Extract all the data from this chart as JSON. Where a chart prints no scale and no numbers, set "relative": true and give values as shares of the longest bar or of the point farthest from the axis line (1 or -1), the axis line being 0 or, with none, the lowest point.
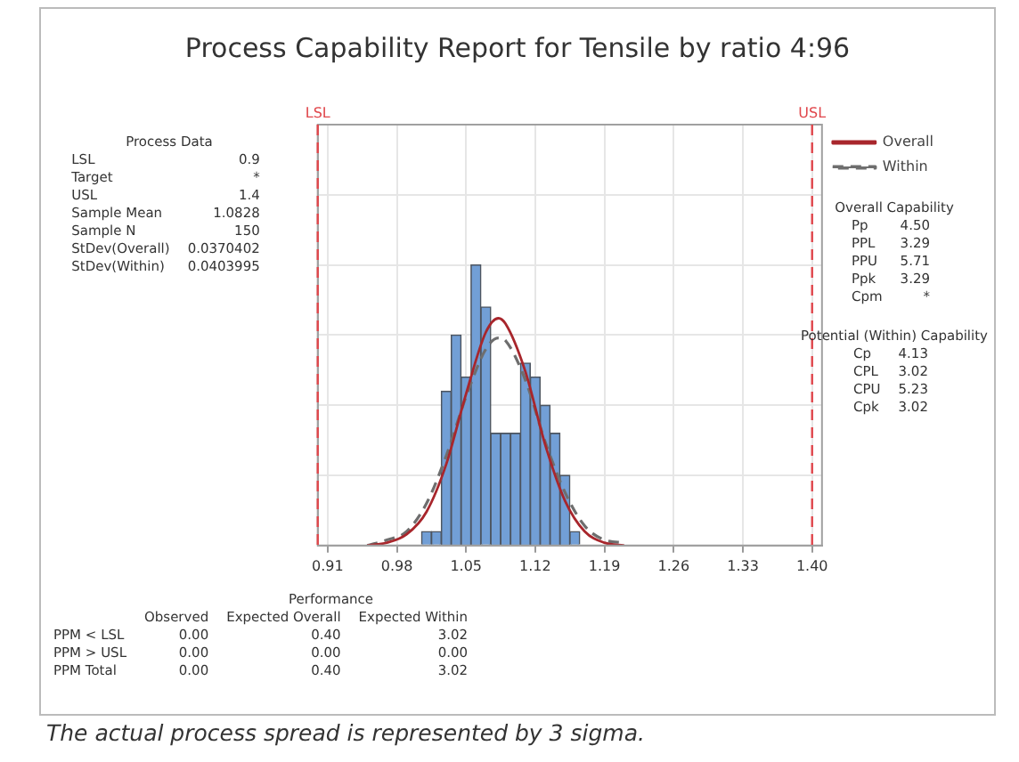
{
  "chart_data": {
    "type": "histogram",
    "title": "Process Capability Report for Tensile by ratio 4:96",
    "relative": true,
    "bins": [
      1.005,
      1.015,
      1.025,
      1.035,
      1.045,
      1.055,
      1.065,
      1.075,
      1.085,
      1.095,
      1.105,
      1.115,
      1.125,
      1.135,
      1.145,
      1.155,
      1.165
    ],
    "values": [
      0.05,
      0.05,
      0.55,
      0.75,
      0.6,
      1,
      0.85,
      0.4,
      0.4,
      0.4,
      0.65,
      0.6,
      0.5,
      0.4,
      0.25,
      0.05
    ],
    "color": "#729fd6",
    "series": [
      {
        "type": "line",
        "name": "Overall",
        "color": "#a8262c",
        "line_style": "solid",
        "x": [
          0.95,
          0.97,
          0.99,
          1.01,
          1.03,
          1.05,
          1.07,
          1.0828,
          1.09,
          1.11,
          1.13,
          1.15,
          1.17,
          1.19,
          1.21
        ],
        "values": [
          0,
          0.01,
          0.04,
          0.12,
          0.29,
          0.54,
          0.76,
          0.81,
          0.79,
          0.62,
          0.36,
          0.16,
          0.05,
          0.01,
          0
        ]
      },
      {
        "type": "line",
        "name": "Within",
        "color": "#6e6e6e",
        "line_style": "dashed",
        "x": [
          0.95,
          0.97,
          0.99,
          1.01,
          1.03,
          1.05,
          1.07,
          1.0828,
          1.09,
          1.11,
          1.13,
          1.15,
          1.17,
          1.19,
          1.21
        ],
        "values": [
          0,
          0.02,
          0.05,
          0.15,
          0.32,
          0.53,
          0.7,
          0.74,
          0.73,
          0.59,
          0.37,
          0.19,
          0.07,
          0.02,
          0.01
        ]
      }
    ],
    "xlim": [
      0.9,
      1.41
    ],
    "xticks": [
      {
        "value": 0.91,
        "label": "0.91"
      },
      {
        "value": 0.98,
        "label": "0.98"
      },
      {
        "value": 1.05,
        "label": "1.05"
      },
      {
        "value": 1.12,
        "label": "1.12"
      },
      {
        "value": 1.19,
        "label": "1.19"
      },
      {
        "value": 1.26,
        "label": "1.26"
      },
      {
        "value": 1.33,
        "label": "1.33"
      },
      {
        "value": 1.4,
        "label": "1.40"
      }
    ],
    "ref_lines": [
      {
        "axis": "x",
        "value": 0.9,
        "label": "LSL",
        "color": "#e0464b",
        "line_style": "dashed"
      },
      {
        "axis": "x",
        "value": 1.4,
        "label": "USL",
        "color": "#e0464b",
        "line_style": "dashed"
      }
    ],
    "grid": true,
    "legend": "top right",
    "marker": "none",
    "tick_labels": "x",
    "annotations": [
      "Process Data\nLSL\t0.9\nTarget\t*\nUSL\t1.4\nSample Mean\t1.0828\nSample N\t150\nStDev(Overall)\t0.0370402\nStDev(Within)\t0.0403995",
      "Overall Capability\nPp\t4.50\nPPL\t3.29\nPPU\t5.71\nPpk\t3.29\nCpm\t*",
      "Potential (Within) Capability\nCp\t4.13\nCPL\t3.02\nCPU\t5.23\nCpk\t3.02",
      "Performance\n\tObserved\tExpected Overall\tExpected Within\nPPM < LSL\t0.00\t0.40\t3.02\nPPM > USL\t0.00\t0.00\t0.00\nPPM Total\t0.00\t0.40\t3.02",
      "The actual process spread is represented by 3 sigma."
    ]
  }
}
